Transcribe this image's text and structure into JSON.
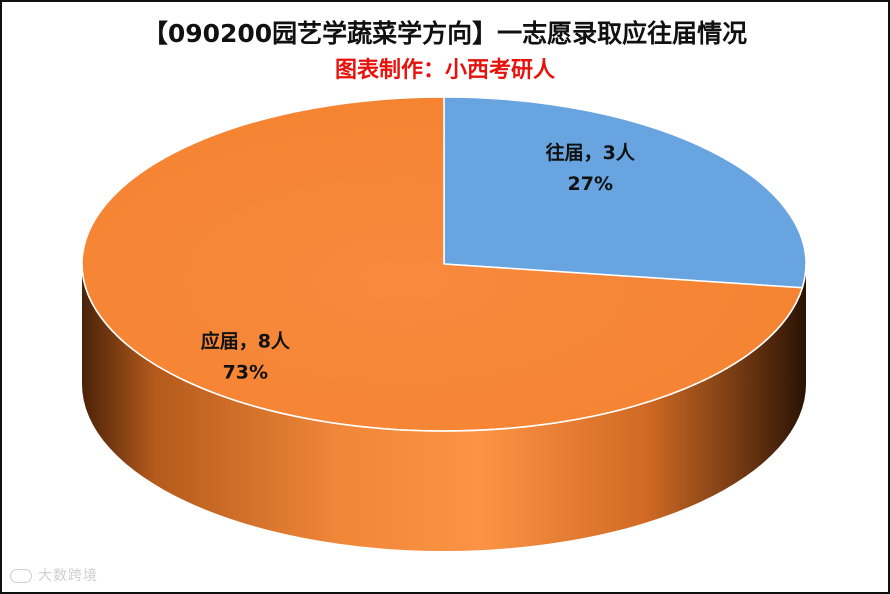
{
  "chart_data": {
    "type": "pie",
    "title": "【090200园艺学蔬菜学方向】一志愿录取应往届情况",
    "subtitle": "图表制作：小西考研人",
    "slices": [
      {
        "label": "往届",
        "count_text": "3人",
        "value": 3,
        "percent_text": "27%",
        "color": "#68a5e0"
      },
      {
        "label": "应届",
        "count_text": "8人",
        "value": 8,
        "percent_text": "73%",
        "color": "#f5873c"
      }
    ]
  },
  "watermark": {
    "text": "大数跨境"
  }
}
